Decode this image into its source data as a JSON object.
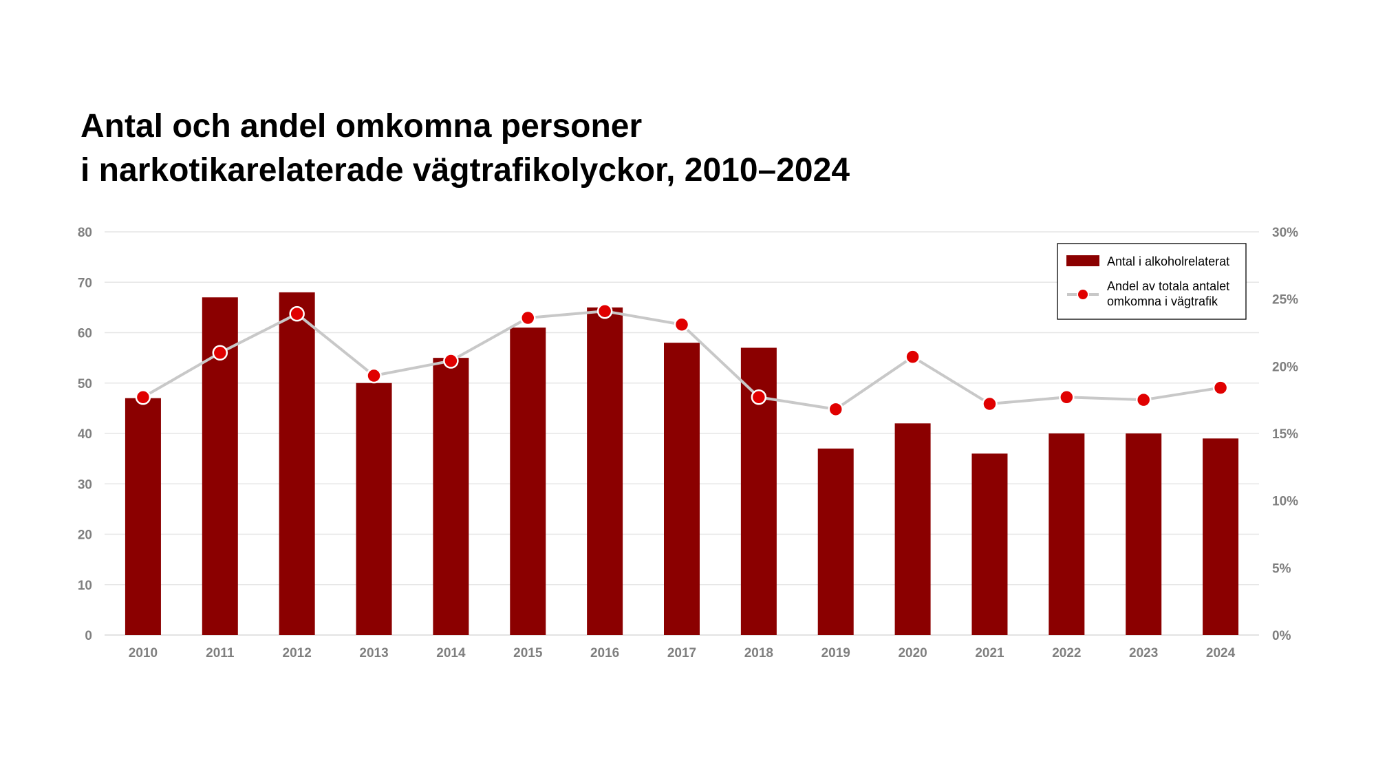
{
  "chart_data": {
    "type": "bar",
    "title": "Antal och andel omkomna personer\ni narkotikarelaterade vägtrafikolyckor, 2010–2024",
    "title_lines": [
      "Antal och andel omkomna personer",
      "i narkotikarelaterade vägtrafikolyckor, 2010–2024"
    ],
    "categories": [
      "2010",
      "2011",
      "2012",
      "2013",
      "2014",
      "2015",
      "2016",
      "2017",
      "2018",
      "2019",
      "2020",
      "2021",
      "2022",
      "2023",
      "2024"
    ],
    "series": [
      {
        "name": "Antal i alkoholrelaterat",
        "type": "bar",
        "axis": "left",
        "color": "#8b0000",
        "values": [
          47,
          67,
          68,
          50,
          55,
          61,
          65,
          58,
          57,
          37,
          42,
          36,
          40,
          40,
          39
        ]
      },
      {
        "name": "Andel av totala antalet omkomna i vägtrafik",
        "name_lines": [
          "Andel av totala antalet",
          "omkomna i vägtrafik"
        ],
        "type": "line",
        "axis": "right",
        "line_color": "#c8c8c8",
        "marker_color": "#e00000",
        "values": [
          17.7,
          21.0,
          23.9,
          19.3,
          20.4,
          23.6,
          24.1,
          23.1,
          17.7,
          16.8,
          20.7,
          17.2,
          17.7,
          17.5,
          18.4
        ]
      }
    ],
    "y_left": {
      "min": 0,
      "max": 80,
      "ticks": [
        "0",
        "10",
        "20",
        "30",
        "40",
        "50",
        "60",
        "70",
        "80"
      ]
    },
    "y_right": {
      "min": 0,
      "max": 30,
      "ticks": [
        "0%",
        "5%",
        "10%",
        "15%",
        "20%",
        "25%",
        "30%"
      ]
    },
    "grid": true,
    "legend": "top-right"
  }
}
